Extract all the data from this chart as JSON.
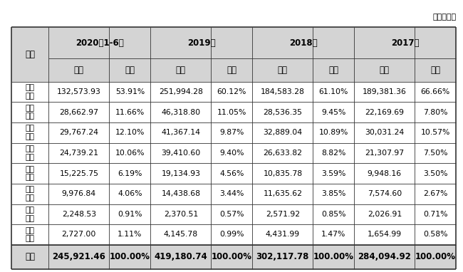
{
  "unit_label": "单位：万元",
  "year_labels": [
    "2020年1-6月",
    "2019年",
    "2018年",
    "2017年"
  ],
  "sub_labels": [
    "金额",
    "占比"
  ],
  "region_label": "区域",
  "rows": [
    [
      "广东\n区域",
      "132,573.93",
      "53.91%",
      "251,994.28",
      "60.12%",
      "184,583.28",
      "61.10%",
      "189,381.36",
      "66.66%"
    ],
    [
      "华中\n区域",
      "28,662.97",
      "11.66%",
      "46,318.80",
      "11.05%",
      "28,536.35",
      "9.45%",
      "22,169.69",
      "7.80%"
    ],
    [
      "广西\n区域",
      "29,767.24",
      "12.10%",
      "41,367.14",
      "9.87%",
      "32,889.04",
      "10.89%",
      "30,031.24",
      "10.57%"
    ],
    [
      "华东\n区域",
      "24,739.21",
      "10.06%",
      "39,410.60",
      "9.40%",
      "26,633.82",
      "8.82%",
      "21,307.97",
      "7.50%"
    ],
    [
      "西南\n区域",
      "15,225.75",
      "6.19%",
      "19,134.93",
      "4.56%",
      "10,835.78",
      "3.59%",
      "9,948.16",
      "3.50%"
    ],
    [
      "华北\n区域",
      "9,976.84",
      "4.06%",
      "14,438.68",
      "3.44%",
      "11,635.62",
      "3.85%",
      "7,574.60",
      "2.67%"
    ],
    [
      "北方\n区域",
      "2,248.53",
      "0.91%",
      "2,370.51",
      "0.57%",
      "2,571.92",
      "0.85%",
      "2,026.91",
      "0.71%"
    ],
    [
      "线上\n销售",
      "2,727.00",
      "1.11%",
      "4,145.78",
      "0.99%",
      "4,431.99",
      "1.47%",
      "1,654.99",
      "0.58%"
    ]
  ],
  "total_row": [
    "合计",
    "245,921.46",
    "100.00%",
    "419,180.74",
    "100.00%",
    "302,117.78",
    "100.00%",
    "284,094.92",
    "100.00%"
  ],
  "bg_color": "#ffffff",
  "header_bg": "#d4d4d4",
  "border_color": "#333333",
  "text_color": "#000000",
  "unit_fontsize": 8,
  "header_fontsize": 8.5,
  "cell_fontsize": 7.8,
  "total_fontsize": 8.5
}
